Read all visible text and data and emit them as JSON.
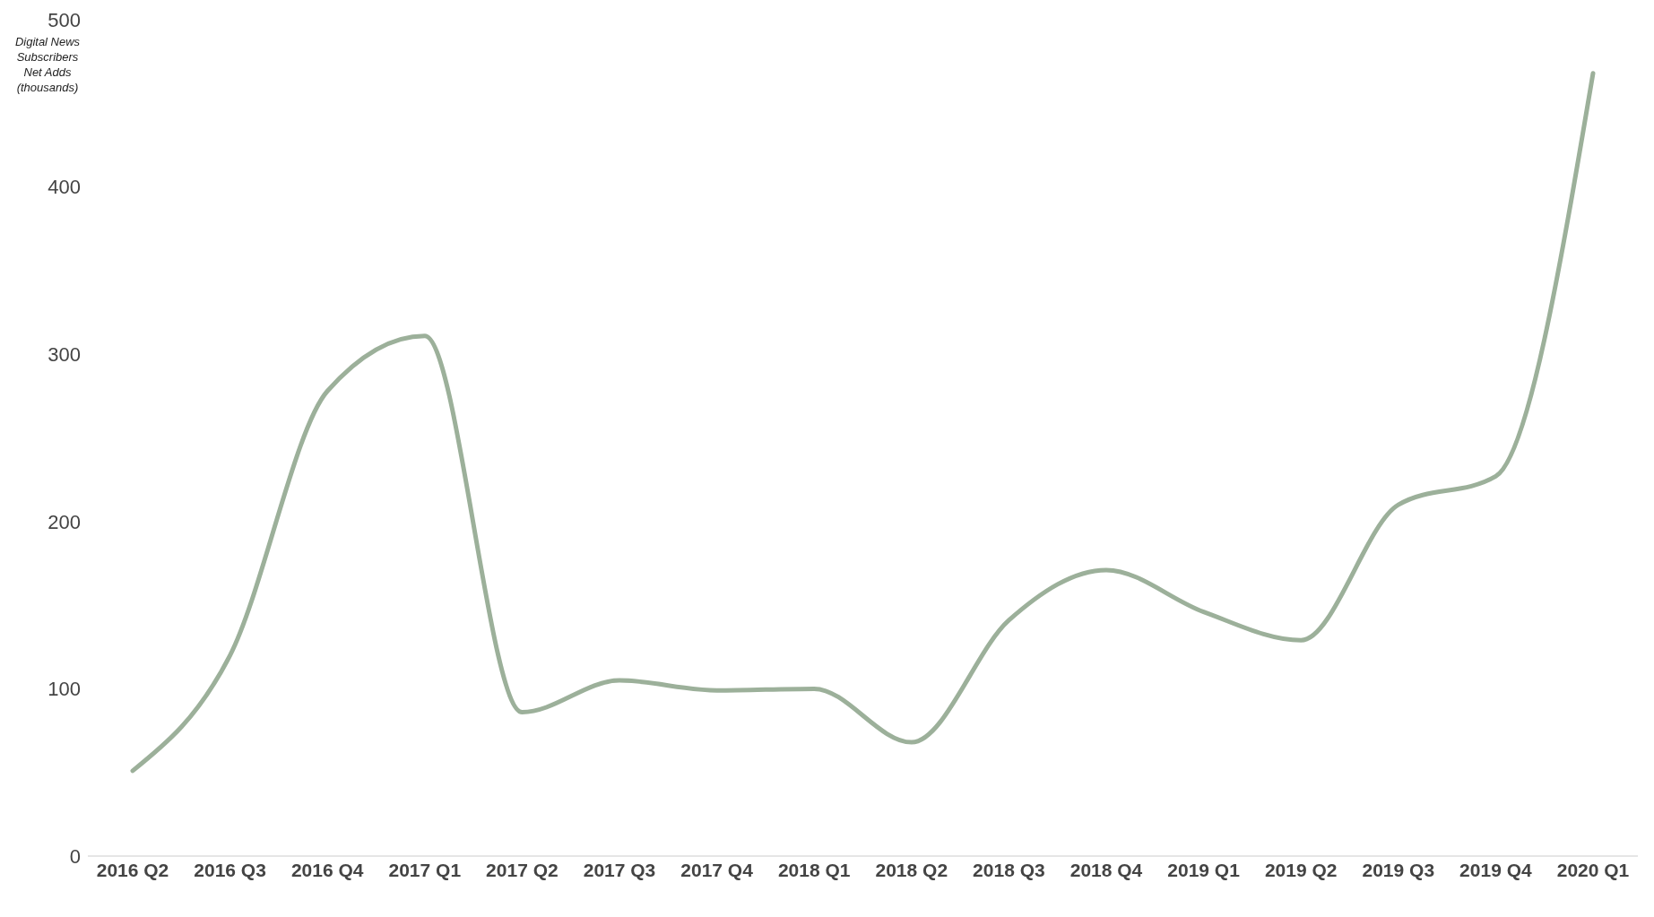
{
  "chart_data": {
    "type": "line",
    "ylabel": "Digital News Subscribers Net Adds (thousands)",
    "categories": [
      "2016 Q2",
      "2016 Q3",
      "2016 Q4",
      "2017 Q1",
      "2017 Q2",
      "2017 Q3",
      "2017 Q4",
      "2018 Q1",
      "2018  Q2",
      "2018 Q3",
      "2018 Q4",
      "2019 Q1",
      "2019 Q2",
      "2019 Q3",
      "2019 Q4",
      "2020 Q1"
    ],
    "series": [
      {
        "color": "#9cb09a",
        "values": [
          51,
          120,
          278,
          311,
          86,
          105,
          99,
          100,
          68,
          141,
          171,
          146,
          129,
          210,
          227,
          468
        ]
      }
    ],
    "ylim": [
      0,
      500
    ],
    "yticks": [
      0,
      100,
      200,
      300,
      400,
      500
    ],
    "marker": "none",
    "line_style": "solid"
  }
}
